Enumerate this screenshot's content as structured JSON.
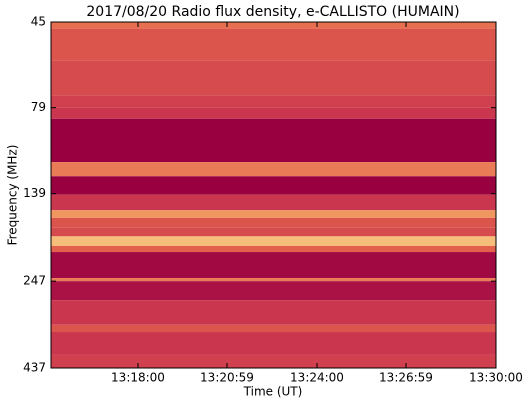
{
  "chart_data": {
    "type": "spectrogram",
    "title": "2017/08/20  Radio flux density, e-CALLISTO (HUMAIN)",
    "x_label": "Time (UT)",
    "y_label": "Frequency (MHz)",
    "xlim": [
      47705,
      48600
    ],
    "xticks": [
      {
        "value": 47880,
        "label": "13:18:00"
      },
      {
        "value": 48059,
        "label": "13:20:59"
      },
      {
        "value": 48240,
        "label": "13:24:00"
      },
      {
        "value": 48419,
        "label": "13:26:59"
      },
      {
        "value": 48600,
        "label": "13:30:00"
      }
    ],
    "ylim": [
      45,
      437
    ],
    "yticks": [
      45,
      79,
      139,
      247,
      437
    ],
    "y_log": true,
    "y_inverted": true,
    "colormap": [
      "#98003f",
      "#c42b4f",
      "#e2604c",
      "#f4a565",
      "#fbe39c"
    ],
    "freq_edges": [
      45,
      47,
      58,
      73,
      79,
      85,
      113,
      124,
      140,
      155,
      163,
      174,
      184,
      196,
      204,
      242,
      247,
      280,
      329,
      345,
      401,
      437
    ],
    "intensity": [
      0.55,
      0.45,
      0.4,
      0.35,
      0.3,
      0.0,
      0.6,
      0.0,
      0.3,
      0.7,
      0.45,
      0.4,
      0.85,
      0.5,
      0.05,
      0.6,
      0.1,
      0.3,
      0.45,
      0.3,
      0.35
    ]
  }
}
